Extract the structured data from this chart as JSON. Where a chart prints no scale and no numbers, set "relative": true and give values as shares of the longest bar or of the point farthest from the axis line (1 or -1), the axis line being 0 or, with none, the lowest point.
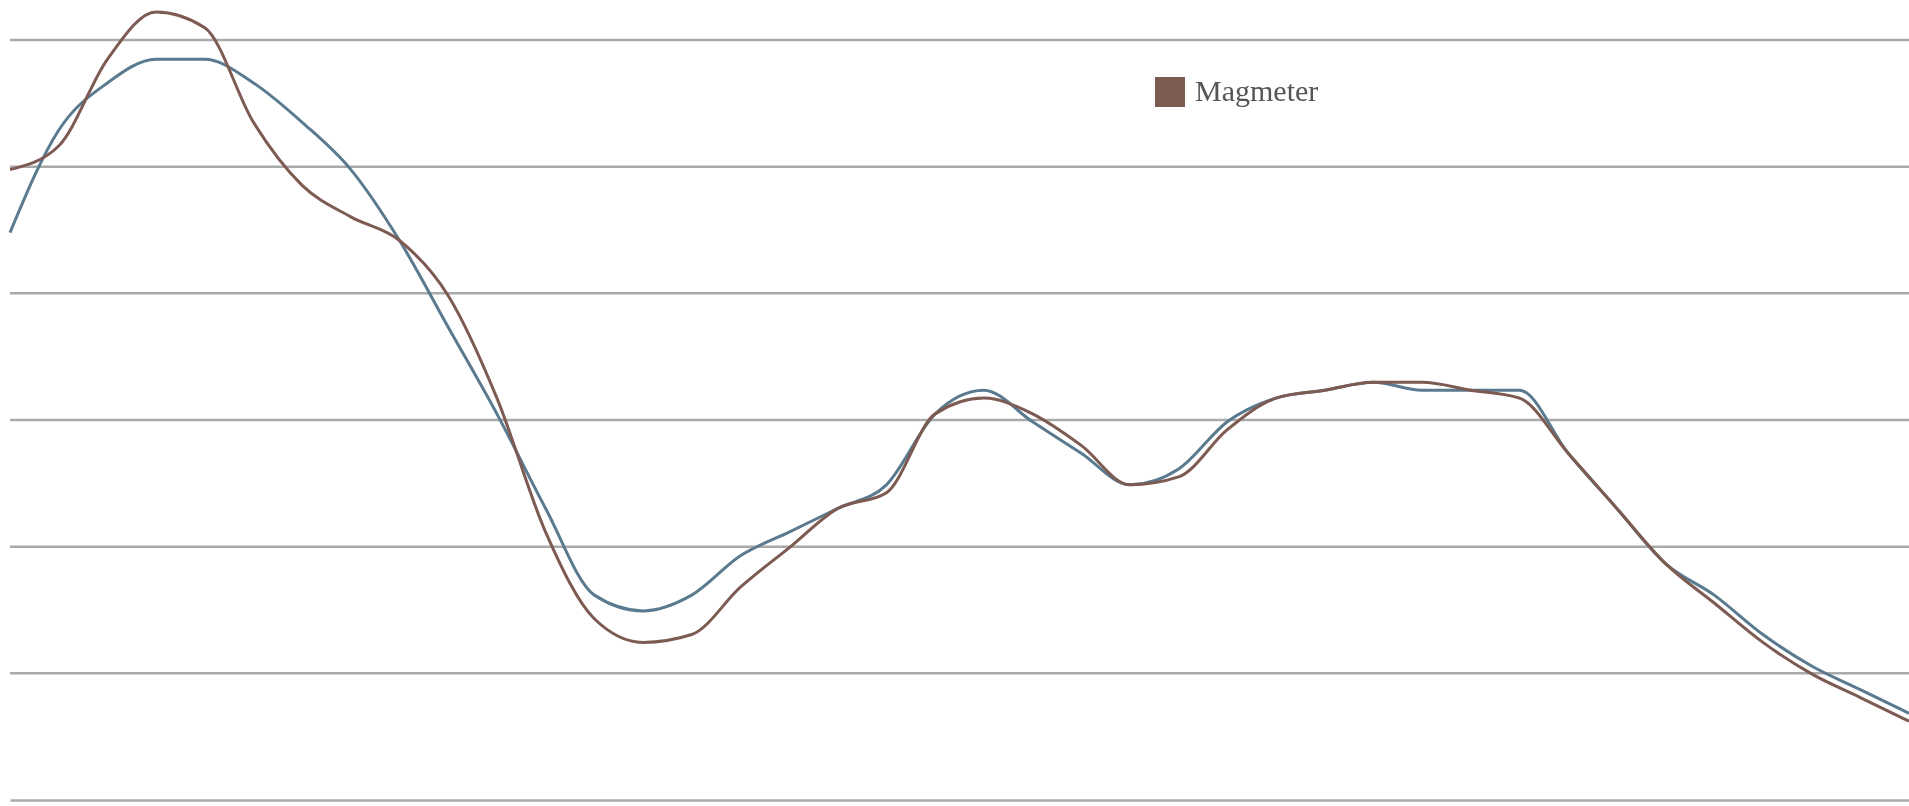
{
  "chart_data": {
    "type": "line",
    "relative": true,
    "grid": "y",
    "legend": "top",
    "line_style": "solid",
    "marker": "none",
    "categories": [
      null,
      null,
      null,
      null,
      null,
      null,
      null,
      null,
      null,
      null,
      null,
      null,
      null,
      null,
      null,
      null,
      null,
      null,
      null,
      null,
      null,
      null,
      null,
      null,
      null,
      null,
      null,
      null,
      null,
      null,
      null,
      null,
      null,
      null,
      null,
      null,
      null,
      null,
      null,
      null
    ],
    "series": [
      {
        "color": "#5a7a8f",
        "values": [
          0.72,
          0.85,
          0.91,
          0.94,
          0.94,
          0.91,
          0.86,
          0.8,
          0.71,
          0.6,
          0.49,
          0.37,
          0.26,
          0.24,
          0.26,
          0.31,
          0.34,
          0.37,
          0.4,
          0.49,
          0.52,
          0.48,
          0.44,
          0.4,
          0.42,
          0.48,
          0.51,
          0.52,
          0.53,
          0.52,
          0.52,
          0.52,
          0.44,
          0.37,
          0.3,
          0.26,
          0.21,
          0.17,
          0.14,
          0.11
        ]
      },
      {
        "name": "Magmeter",
        "color": "#7d5a52",
        "values": [
          0.8,
          0.83,
          0.94,
          1,
          0.98,
          0.86,
          0.78,
          0.74,
          0.71,
          0.64,
          0.51,
          0.34,
          0.23,
          0.2,
          0.21,
          0.27,
          0.32,
          0.37,
          0.39,
          0.49,
          0.51,
          0.49,
          0.45,
          0.4,
          0.41,
          0.47,
          0.51,
          0.52,
          0.53,
          0.53,
          0.52,
          0.51,
          0.44,
          0.37,
          0.3,
          0.25,
          0.2,
          0.16,
          0.13,
          0.1
        ]
      }
    ]
  }
}
